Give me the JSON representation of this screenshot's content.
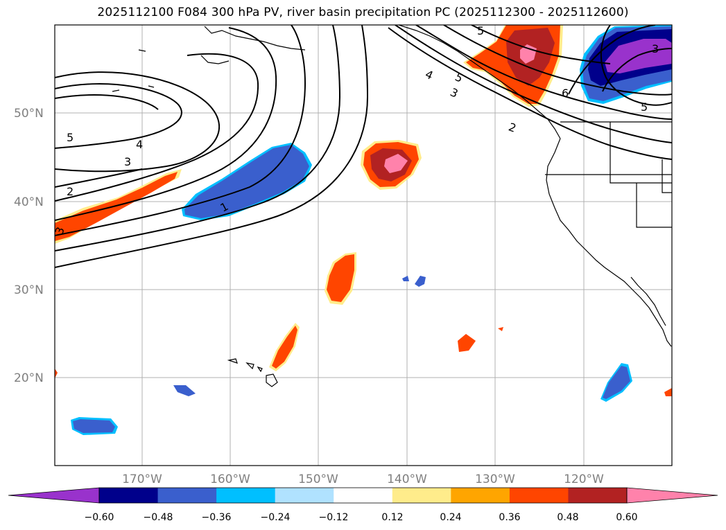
{
  "title": "2025112100 F084 300 hPa PV, river basin precipitation PC (2025112300 - 2025112600)",
  "map": {
    "lat_labels": [
      "50°N",
      "40°N",
      "30°N",
      "20°N"
    ],
    "lon_labels": [
      "170°W",
      "160°W",
      "150°W",
      "140°W",
      "130°W",
      "120°W"
    ],
    "pv_contour_labels": [
      "1",
      "2",
      "3",
      "4",
      "5",
      "2",
      "3",
      "4",
      "5",
      "6",
      "3",
      "5",
      "5",
      "3"
    ]
  },
  "colorbar": {
    "tick_labels": [
      "−0.60",
      "−0.48",
      "−0.36",
      "−0.24",
      "−0.12",
      "0.12",
      "0.24",
      "0.36",
      "0.48",
      "0.60"
    ],
    "colors": [
      "#9932cc",
      "#00008b",
      "#3a5fcd",
      "#00bfff",
      "#b0e2ff",
      "#ffffff",
      "#ffec8b",
      "#ffa500",
      "#ff4500",
      "#b22222",
      "#ff82ab"
    ]
  }
}
